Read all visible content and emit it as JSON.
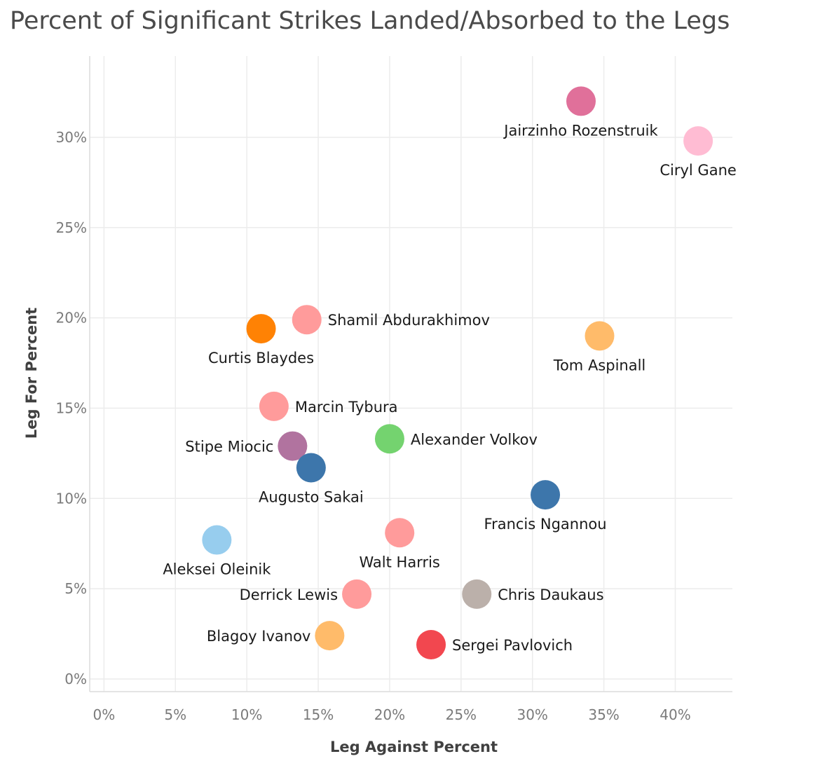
{
  "chart_data": {
    "type": "scatter",
    "title": "Percent of Significant Strikes Landed/Absorbed to the Legs",
    "xlabel": "Leg Against Percent",
    "ylabel": "Leg For Percent",
    "xlim": [
      -1,
      44
    ],
    "ylim": [
      -0.7,
      34.5
    ],
    "xticks": [
      0,
      5,
      10,
      15,
      20,
      25,
      30,
      35,
      40
    ],
    "yticks": [
      0,
      5,
      10,
      15,
      20,
      25,
      30
    ],
    "xtick_labels": [
      "0%",
      "5%",
      "10%",
      "15%",
      "20%",
      "25%",
      "30%",
      "35%",
      "40%"
    ],
    "ytick_labels": [
      "0%",
      "5%",
      "10%",
      "15%",
      "20%",
      "25%",
      "30%"
    ],
    "grid": true,
    "legend": "none",
    "points": [
      {
        "label": "Jairzinho Rozenstruik",
        "x": 33.4,
        "y": 32.0,
        "color": "#e0709a",
        "label_pos": "below"
      },
      {
        "label": "Ciryl Gane",
        "x": 41.6,
        "y": 29.8,
        "color": "#ffbcd3",
        "label_pos": "below"
      },
      {
        "label": "Shamil Abdurakhimov",
        "x": 14.2,
        "y": 19.9,
        "color": "#ff9b9b",
        "label_pos": "right"
      },
      {
        "label": "Curtis Blaydes",
        "x": 11.0,
        "y": 19.4,
        "color": "#ff8204",
        "label_pos": "below"
      },
      {
        "label": "Tom Aspinall",
        "x": 34.7,
        "y": 19.0,
        "color": "#ffbb6a",
        "label_pos": "below"
      },
      {
        "label": "Marcin Tybura",
        "x": 11.9,
        "y": 15.1,
        "color": "#ff9b9b",
        "label_pos": "right"
      },
      {
        "label": "Alexander Volkov",
        "x": 20.0,
        "y": 13.3,
        "color": "#74d36f",
        "label_pos": "right"
      },
      {
        "label": "Stipe Miocic",
        "x": 13.2,
        "y": 12.9,
        "color": "#b1739f",
        "label_pos": "left"
      },
      {
        "label": "Augusto Sakai",
        "x": 14.5,
        "y": 11.7,
        "color": "#3d76ab",
        "label_pos": "below"
      },
      {
        "label": "Francis Ngannou",
        "x": 30.9,
        "y": 10.2,
        "color": "#3d76ab",
        "label_pos": "below"
      },
      {
        "label": "Aleksei Oleinik",
        "x": 7.9,
        "y": 7.7,
        "color": "#97cdee",
        "label_pos": "below"
      },
      {
        "label": "Walt Harris",
        "x": 20.7,
        "y": 8.1,
        "color": "#ff9b9b",
        "label_pos": "below"
      },
      {
        "label": "Derrick Lewis",
        "x": 17.7,
        "y": 4.7,
        "color": "#ff9b9b",
        "label_pos": "left"
      },
      {
        "label": "Chris Daukaus",
        "x": 26.1,
        "y": 4.7,
        "color": "#bbb0aa",
        "label_pos": "right"
      },
      {
        "label": "Blagoy Ivanov",
        "x": 15.8,
        "y": 2.4,
        "color": "#ffbb6a",
        "label_pos": "left"
      },
      {
        "label": "Sergei Pavlovich",
        "x": 22.9,
        "y": 1.9,
        "color": "#f2474f",
        "label_pos": "right"
      }
    ]
  }
}
